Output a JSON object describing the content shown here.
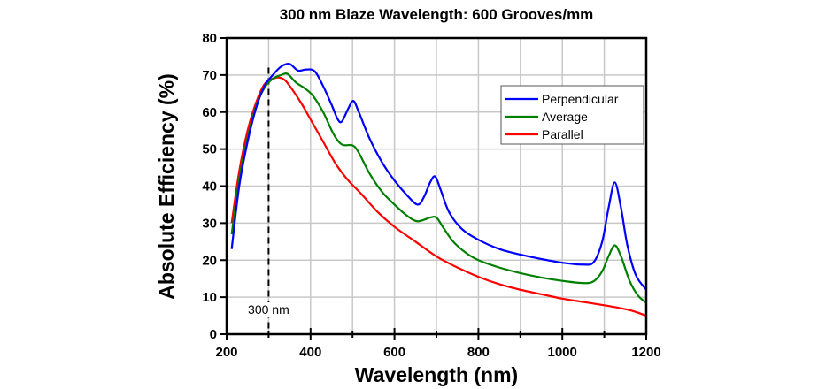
{
  "chart_data": {
    "type": "line",
    "title": "300 nm Blaze Wavelength: 600 Grooves/mm",
    "xlabel": "Wavelength (nm)",
    "ylabel": "Absolute Efficiency (%)",
    "xlim": [
      200,
      1200
    ],
    "ylim": [
      0,
      80
    ],
    "xticks": [
      200,
      400,
      600,
      800,
      1000,
      1200
    ],
    "yticks": [
      0,
      10,
      20,
      30,
      40,
      50,
      60,
      70,
      80
    ],
    "grid": true,
    "legend_position": "top-right",
    "annotation": {
      "text": "300 nm",
      "x": 300,
      "style": "dashed vertical line"
    },
    "series": [
      {
        "name": "Perpendicular",
        "color": "#0000ff",
        "points": [
          [
            212,
            23
          ],
          [
            230,
            40
          ],
          [
            250,
            52
          ],
          [
            270,
            61
          ],
          [
            290,
            67
          ],
          [
            310,
            70
          ],
          [
            330,
            72.3
          ],
          [
            350,
            73
          ],
          [
            370,
            71.2
          ],
          [
            390,
            71.5
          ],
          [
            410,
            71
          ],
          [
            430,
            67
          ],
          [
            450,
            62
          ],
          [
            465,
            58
          ],
          [
            475,
            57.5
          ],
          [
            490,
            61
          ],
          [
            502,
            63
          ],
          [
            515,
            60
          ],
          [
            540,
            53
          ],
          [
            570,
            46.5
          ],
          [
            600,
            41.5
          ],
          [
            630,
            37.5
          ],
          [
            655,
            35
          ],
          [
            670,
            37
          ],
          [
            685,
            41
          ],
          [
            697,
            42.6
          ],
          [
            710,
            39
          ],
          [
            730,
            33
          ],
          [
            760,
            28.5
          ],
          [
            800,
            25.5
          ],
          [
            850,
            23
          ],
          [
            900,
            21.5
          ],
          [
            950,
            20.3
          ],
          [
            1000,
            19.3
          ],
          [
            1050,
            18.8
          ],
          [
            1075,
            19.5
          ],
          [
            1095,
            25
          ],
          [
            1110,
            34
          ],
          [
            1125,
            41
          ],
          [
            1140,
            34
          ],
          [
            1155,
            24
          ],
          [
            1175,
            16
          ],
          [
            1200,
            12
          ]
        ]
      },
      {
        "name": "Average",
        "color": "#008000",
        "points": [
          [
            212,
            27
          ],
          [
            230,
            42
          ],
          [
            250,
            53
          ],
          [
            270,
            61.5
          ],
          [
            290,
            66.5
          ],
          [
            310,
            69
          ],
          [
            330,
            70
          ],
          [
            345,
            70.3
          ],
          [
            365,
            68
          ],
          [
            385,
            66.5
          ],
          [
            405,
            64.5
          ],
          [
            430,
            60
          ],
          [
            455,
            54
          ],
          [
            475,
            51.2
          ],
          [
            500,
            51
          ],
          [
            515,
            49
          ],
          [
            540,
            43.5
          ],
          [
            570,
            38.5
          ],
          [
            600,
            35
          ],
          [
            630,
            32
          ],
          [
            655,
            30.5
          ],
          [
            685,
            31.5
          ],
          [
            700,
            31.5
          ],
          [
            715,
            29
          ],
          [
            740,
            25
          ],
          [
            770,
            22
          ],
          [
            800,
            20
          ],
          [
            850,
            18
          ],
          [
            900,
            16.5
          ],
          [
            950,
            15.3
          ],
          [
            1000,
            14.4
          ],
          [
            1050,
            13.8
          ],
          [
            1075,
            14.3
          ],
          [
            1095,
            17
          ],
          [
            1110,
            21
          ],
          [
            1125,
            24
          ],
          [
            1140,
            21
          ],
          [
            1160,
            14.5
          ],
          [
            1180,
            10.5
          ],
          [
            1200,
            8.5
          ]
        ]
      },
      {
        "name": "Parallel",
        "color": "#ff0000",
        "points": [
          [
            212,
            30
          ],
          [
            230,
            44
          ],
          [
            250,
            55
          ],
          [
            270,
            62.5
          ],
          [
            290,
            67.5
          ],
          [
            310,
            69
          ],
          [
            325,
            69.3
          ],
          [
            340,
            68.5
          ],
          [
            360,
            65.5
          ],
          [
            380,
            62
          ],
          [
            400,
            58
          ],
          [
            430,
            52
          ],
          [
            460,
            46
          ],
          [
            490,
            41.5
          ],
          [
            520,
            38
          ],
          [
            560,
            33
          ],
          [
            600,
            29
          ],
          [
            650,
            25
          ],
          [
            700,
            21
          ],
          [
            750,
            18
          ],
          [
            800,
            15.5
          ],
          [
            850,
            13.5
          ],
          [
            900,
            12
          ],
          [
            950,
            10.8
          ],
          [
            1000,
            9.6
          ],
          [
            1050,
            8.7
          ],
          [
            1100,
            7.8
          ],
          [
            1140,
            7
          ],
          [
            1170,
            6.2
          ],
          [
            1200,
            5
          ]
        ]
      }
    ]
  }
}
